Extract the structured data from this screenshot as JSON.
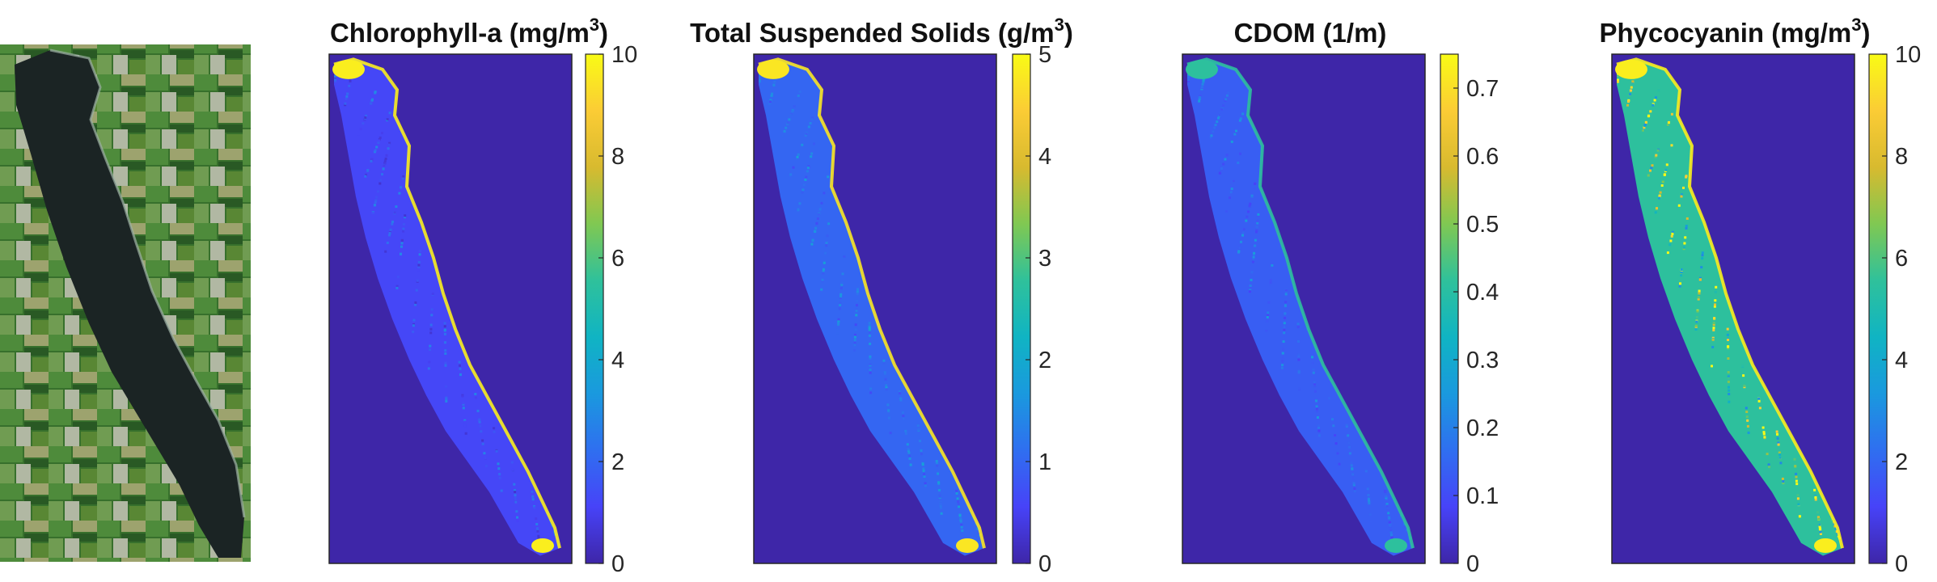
{
  "figure": {
    "rgb_image": {
      "name": "true-color-lake-image"
    },
    "colormap": [
      "#3e26a8",
      "#4743f8",
      "#2f6ff0",
      "#1a99de",
      "#10b4c3",
      "#2fc19b",
      "#80c852",
      "#d8ba2f",
      "#fbcc35",
      "#f9fb15"
    ],
    "lake_fill_color": "#3a44e0",
    "background_color": "#3e26a8",
    "panels": [
      {
        "id": "chlorophyll-a",
        "title": "Chlorophyll-a",
        "unit_prefix": "(mg/m",
        "unit_exponent": "3",
        "unit_suffix": ")",
        "colorbar_range": [
          0,
          10
        ],
        "colorbar_ticks": [
          "10",
          "8",
          "6",
          "4",
          "2",
          "0"
        ],
        "lake_level": 0.12,
        "shore_level": 0.97
      },
      {
        "id": "total-suspended-solids",
        "title": "Total Suspended Solids",
        "unit_prefix": "(g/m",
        "unit_exponent": "3",
        "unit_suffix": ")",
        "colorbar_range": [
          0,
          5
        ],
        "colorbar_ticks": [
          "5",
          "4",
          "3",
          "2",
          "1",
          "0"
        ],
        "lake_level": 0.2,
        "shore_level": 0.95
      },
      {
        "id": "cdom",
        "title": "CDOM (1/m)",
        "unit_prefix": "",
        "unit_exponent": "",
        "unit_suffix": "",
        "colorbar_range": [
          0,
          0.75
        ],
        "colorbar_ticks": [
          "0.7",
          "0.6",
          "0.5",
          "0.4",
          "0.3",
          "0.2",
          "0.1",
          "0"
        ],
        "lake_level": 0.18,
        "shore_level": 0.55
      },
      {
        "id": "phycocyanin",
        "title": "Phycocyanin",
        "unit_prefix": "(mg/m",
        "unit_exponent": "3",
        "unit_suffix": ")",
        "colorbar_range": [
          0,
          10
        ],
        "colorbar_ticks": [
          "10",
          "8",
          "6",
          "4",
          "2",
          "0"
        ],
        "lake_level": 0.55,
        "shore_level": 0.97
      }
    ]
  }
}
